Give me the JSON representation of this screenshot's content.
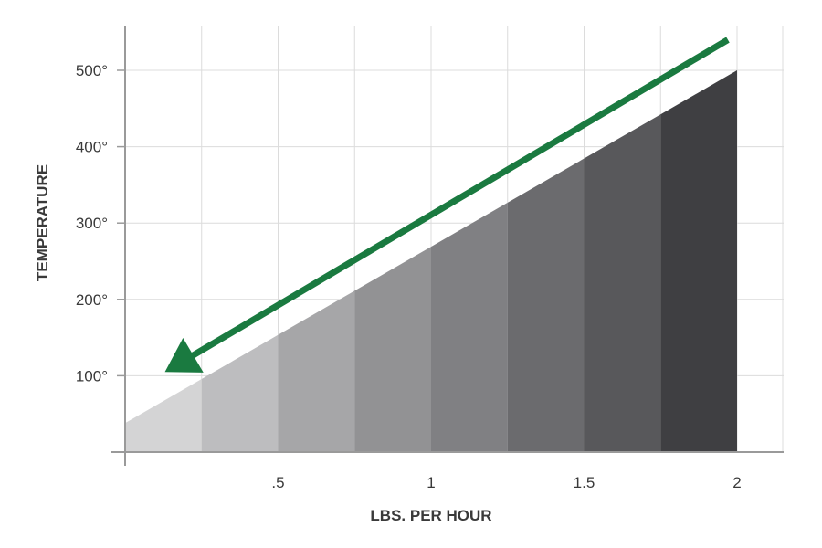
{
  "chart_data": {
    "type": "area",
    "title": "",
    "xlabel": "LBS. PER HOUR",
    "ylabel": "TEMPERATURE",
    "xlim": [
      0,
      2
    ],
    "ylim": [
      0,
      500
    ],
    "x_ticks": [
      {
        "value": 0.5,
        "label": ".5"
      },
      {
        "value": 1,
        "label": "1"
      },
      {
        "value": 1.5,
        "label": "1.5"
      },
      {
        "value": 2,
        "label": "2"
      }
    ],
    "y_ticks": [
      {
        "value": 100,
        "label": "100°"
      },
      {
        "value": 200,
        "label": "200°"
      },
      {
        "value": 300,
        "label": "300°"
      },
      {
        "value": 400,
        "label": "400°"
      },
      {
        "value": 500,
        "label": "500°"
      }
    ],
    "grid": true,
    "line": {
      "x": [
        0,
        2
      ],
      "y": [
        38,
        500
      ]
    },
    "band_colors": [
      "#d4d4d5",
      "#bdbdbf",
      "#a6a6a8",
      "#929294",
      "#808083",
      "#6b6b6e",
      "#58585b",
      "#3f3f42"
    ],
    "arrow": {
      "color": "#1a7a40",
      "from": [
        1.97,
        540
      ],
      "to": [
        0.13,
        105
      ],
      "direction": "down-left"
    }
  }
}
